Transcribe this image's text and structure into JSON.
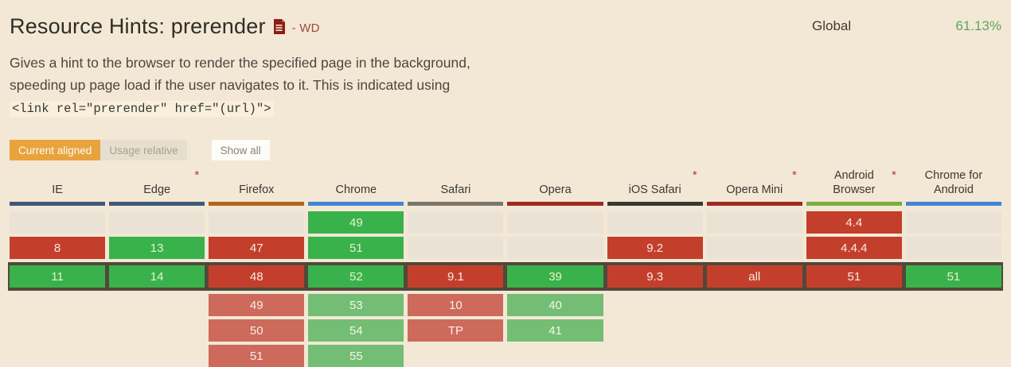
{
  "page": {
    "title": "Resource Hints: prerender",
    "spec_status": "- WD",
    "global_label": "Global",
    "global_percent": "61.13%",
    "description_text": "Gives a hint to the browser to render the specified page in the background, speeding up page load if the user navigates to it. This is indicated using ",
    "description_code": "<link rel=\"prerender\" href=\"(url)\">"
  },
  "controls": {
    "current_aligned": "Current aligned",
    "usage_relative": "Usage relative",
    "show_all": "Show all"
  },
  "colors": {
    "background": "#f2e8d5",
    "accent_orange": "#e8a33d",
    "supported_green": "#3ab24c",
    "unsupported_red": "#c33f2c",
    "future_supported_green": "#74bd74",
    "future_unsupported_red": "#cd6a5b",
    "past_empty_cell": "#eae3d5",
    "current_row_border": "#52483a",
    "global_percent_green": "#5ea55e",
    "spec_doc_icon_red": "#8e1d15"
  },
  "table": {
    "note_marker": "*",
    "browsers": [
      {
        "name": "IE",
        "asterisk": false,
        "bar_color": "#3d5a78",
        "rows": [
          {
            "type": "past"
          },
          {
            "type": "n",
            "text": "8"
          },
          {
            "type": "y",
            "text": "11"
          },
          {
            "type": "none"
          },
          {
            "type": "none"
          },
          {
            "type": "none"
          }
        ]
      },
      {
        "name": "Edge",
        "asterisk": true,
        "bar_color": "#3d5a78",
        "rows": [
          {
            "type": "past"
          },
          {
            "type": "y",
            "text": "13"
          },
          {
            "type": "y",
            "text": "14"
          },
          {
            "type": "none"
          },
          {
            "type": "none"
          },
          {
            "type": "none"
          }
        ]
      },
      {
        "name": "Firefox",
        "asterisk": false,
        "bar_color": "#b5641c",
        "rows": [
          {
            "type": "past"
          },
          {
            "type": "n",
            "text": "47"
          },
          {
            "type": "n",
            "text": "48"
          },
          {
            "type": "nf",
            "text": "49"
          },
          {
            "type": "nf",
            "text": "50"
          },
          {
            "type": "nf",
            "text": "51"
          }
        ]
      },
      {
        "name": "Chrome",
        "asterisk": false,
        "bar_color": "#4285d8",
        "rows": [
          {
            "type": "y",
            "text": "49"
          },
          {
            "type": "y",
            "text": "51"
          },
          {
            "type": "y",
            "text": "52"
          },
          {
            "type": "yf",
            "text": "53"
          },
          {
            "type": "yf",
            "text": "54"
          },
          {
            "type": "yf",
            "text": "55"
          }
        ]
      },
      {
        "name": "Safari",
        "asterisk": false,
        "bar_color": "#7a7669",
        "rows": [
          {
            "type": "past"
          },
          {
            "type": "past"
          },
          {
            "type": "n",
            "text": "9.1"
          },
          {
            "type": "nf",
            "text": "10"
          },
          {
            "type": "nf",
            "text": "TP"
          },
          {
            "type": "none"
          }
        ]
      },
      {
        "name": "Opera",
        "asterisk": false,
        "bar_color": "#9e2a21",
        "rows": [
          {
            "type": "past"
          },
          {
            "type": "past"
          },
          {
            "type": "y",
            "text": "39"
          },
          {
            "type": "yf",
            "text": "40"
          },
          {
            "type": "yf",
            "text": "41"
          },
          {
            "type": "none"
          }
        ]
      },
      {
        "name": "iOS Safari",
        "asterisk": true,
        "bar_color": "#3a3833",
        "rows": [
          {
            "type": "past"
          },
          {
            "type": "n",
            "text": "9.2"
          },
          {
            "type": "n",
            "text": "9.3"
          },
          {
            "type": "none"
          },
          {
            "type": "none"
          },
          {
            "type": "none"
          }
        ]
      },
      {
        "name": "Opera Mini",
        "asterisk": true,
        "bar_color": "#9e2a21",
        "rows": [
          {
            "type": "past"
          },
          {
            "type": "past"
          },
          {
            "type": "n",
            "text": "all"
          },
          {
            "type": "none"
          },
          {
            "type": "none"
          },
          {
            "type": "none"
          }
        ]
      },
      {
        "name": "Android Browser",
        "asterisk": true,
        "bar_color": "#7cad3f",
        "rows": [
          {
            "type": "n",
            "text": "4.4"
          },
          {
            "type": "n",
            "text": "4.4.4"
          },
          {
            "type": "n",
            "text": "51"
          },
          {
            "type": "none"
          },
          {
            "type": "none"
          },
          {
            "type": "none"
          }
        ]
      },
      {
        "name": "Chrome for Android",
        "asterisk": false,
        "bar_color": "#4285d8",
        "rows": [
          {
            "type": "past"
          },
          {
            "type": "past"
          },
          {
            "type": "y",
            "text": "51"
          },
          {
            "type": "none"
          },
          {
            "type": "none"
          },
          {
            "type": "none"
          }
        ]
      }
    ],
    "current_row_index": 2
  }
}
